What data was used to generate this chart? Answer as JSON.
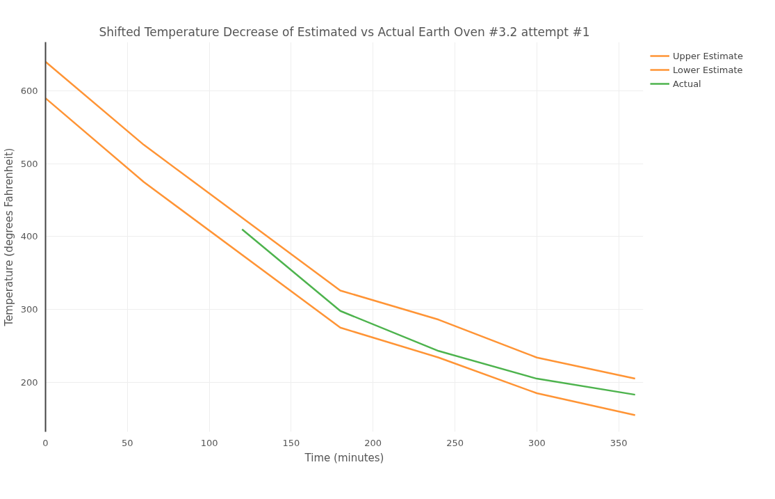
{
  "chart_data": {
    "type": "line",
    "title": "Shifted Temperature Decrease of Estimated vs Actual Earth Oven #3.2 attempt #1",
    "xlabel": "Time (minutes)",
    "ylabel": "Temperature (degrees Fahrenheit)",
    "series": [
      {
        "name": "Upper Estimate",
        "color": "#ff9435",
        "x": [
          0,
          60,
          180,
          240,
          300,
          360
        ],
        "values": [
          640,
          526,
          326,
          286,
          234,
          205
        ]
      },
      {
        "name": "Lower Estimate",
        "color": "#ff9435",
        "x": [
          0,
          60,
          180,
          240,
          300,
          360
        ],
        "values": [
          590,
          475,
          275,
          234,
          185,
          155
        ]
      },
      {
        "name": "Actual",
        "color": "#4db34d",
        "x": [
          120,
          180,
          240,
          300,
          360
        ],
        "values": [
          410,
          298,
          243,
          205,
          183
        ]
      }
    ],
    "xlim": [
      0,
      365
    ],
    "ylim": [
      132,
      667
    ],
    "xticks": [
      0,
      50,
      100,
      150,
      200,
      250,
      300,
      350
    ],
    "yticks": [
      200,
      300,
      400,
      500,
      600
    ],
    "grid": true,
    "legend": "top right",
    "marker": "none",
    "line_style": "solid"
  }
}
